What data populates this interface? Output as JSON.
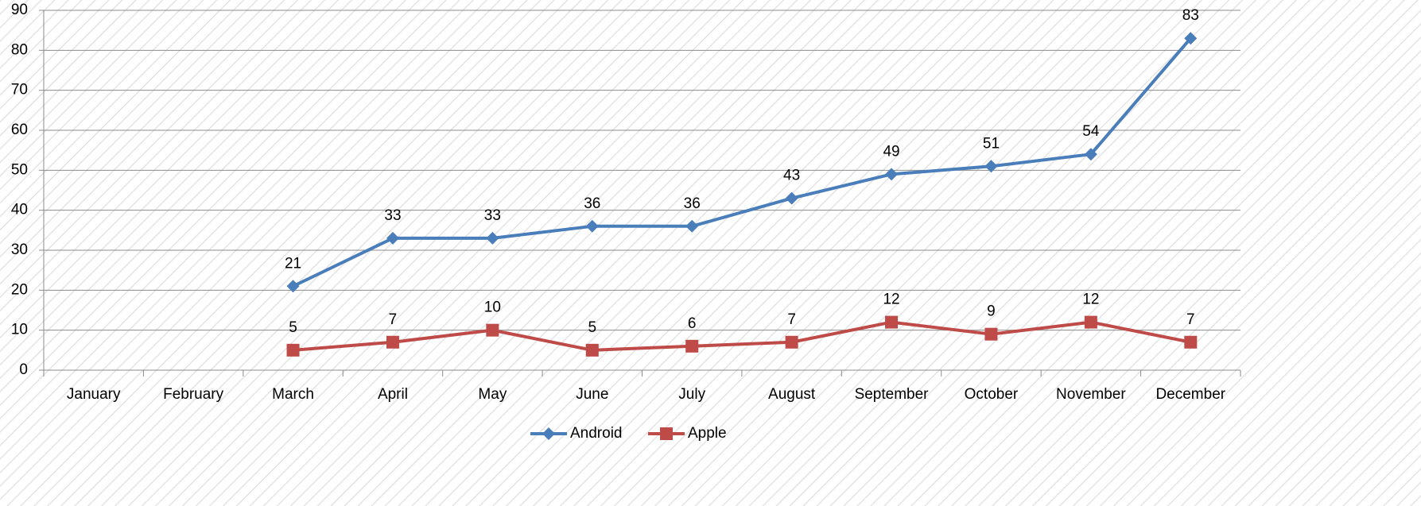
{
  "chart_data": {
    "type": "line",
    "categories": [
      "January",
      "February",
      "March",
      "April",
      "May",
      "June",
      "July",
      "August",
      "September",
      "October",
      "November",
      "December"
    ],
    "series": [
      {
        "name": "Android",
        "color": "#4a7ebb",
        "marker": "diamond",
        "values": [
          null,
          null,
          21,
          33,
          33,
          36,
          36,
          43,
          49,
          51,
          54,
          83
        ]
      },
      {
        "name": "Apple",
        "color": "#be4b48",
        "marker": "square",
        "values": [
          null,
          null,
          5,
          7,
          10,
          5,
          6,
          7,
          12,
          9,
          12,
          7
        ]
      }
    ],
    "ylim": [
      0,
      90
    ],
    "yticks": [
      0,
      10,
      20,
      30,
      40,
      50,
      60,
      70,
      80,
      90
    ],
    "grid": true,
    "legend": "bottom",
    "data_labels": true
  }
}
